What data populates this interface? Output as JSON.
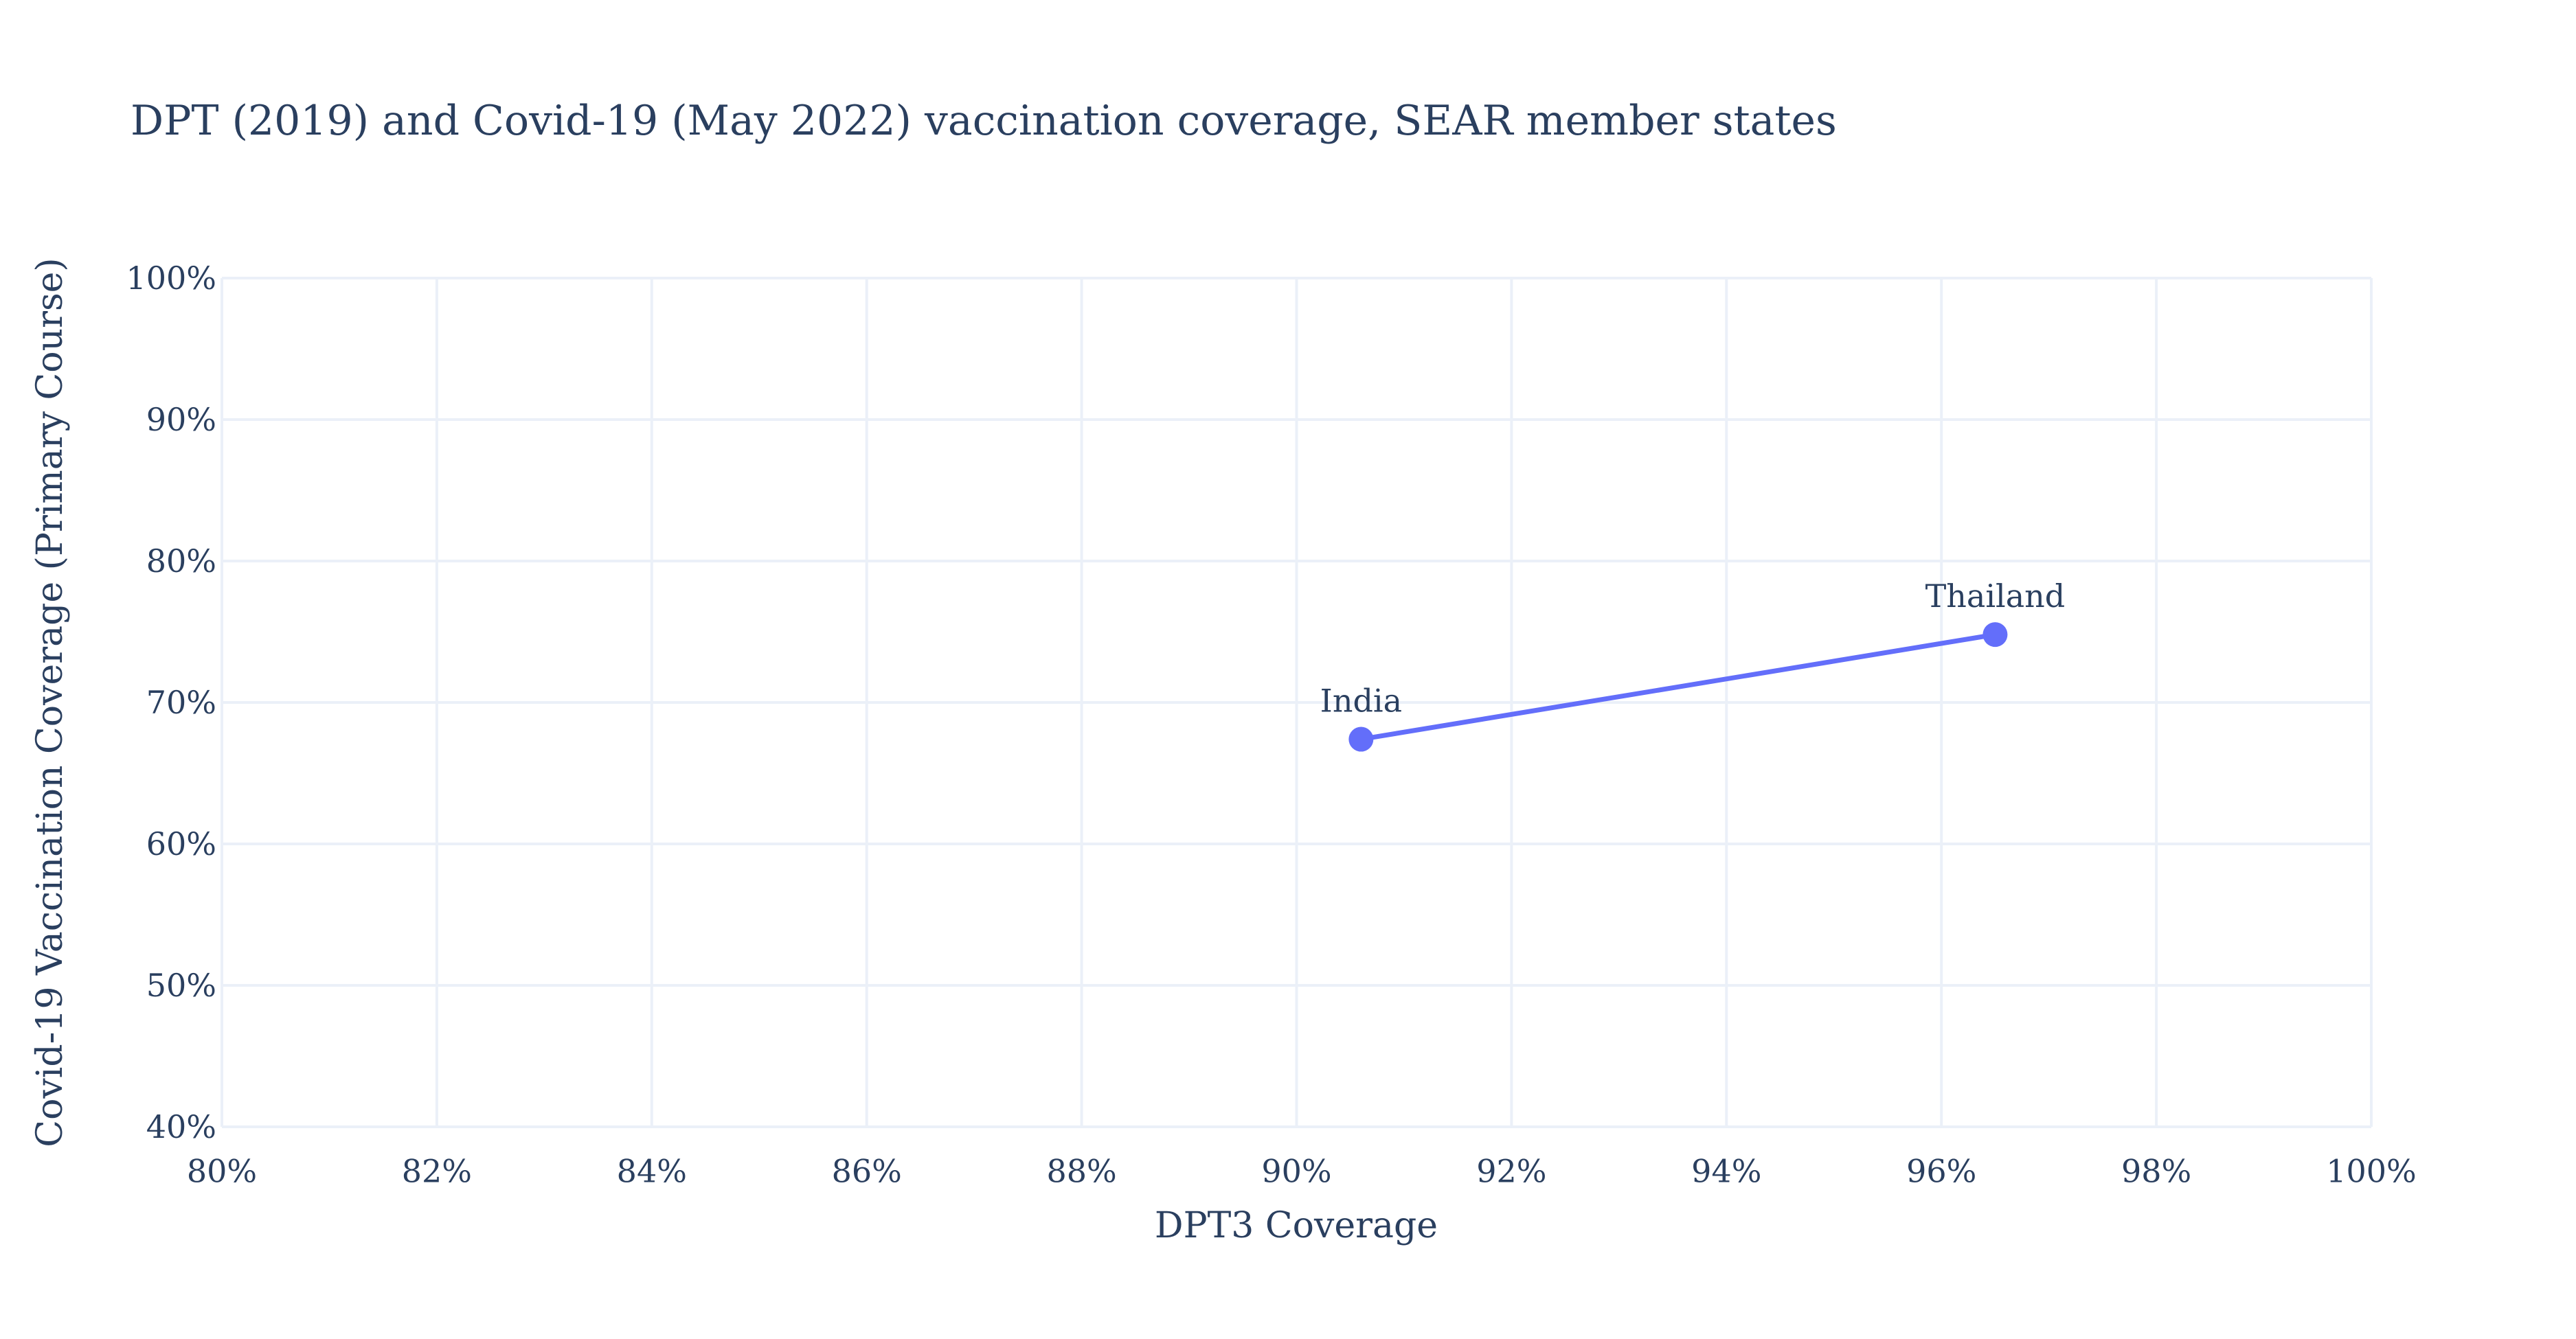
{
  "chart_data": {
    "type": "line",
    "title": "DPT (2019) and Covid-19 (May 2022) vaccination coverage, SEAR member states",
    "xlabel": "DPT3 Coverage",
    "ylabel": "Covid-19 Vaccination Coverage (Primary Course)",
    "xlim": [
      0.8,
      1.0
    ],
    "ylim": [
      0.4,
      1.0
    ],
    "x_ticks": [
      0.8,
      0.82,
      0.84,
      0.86,
      0.88,
      0.9,
      0.92,
      0.94,
      0.96,
      0.98,
      1.0
    ],
    "x_tick_labels": [
      "80%",
      "82%",
      "84%",
      "86%",
      "88%",
      "90%",
      "92%",
      "94%",
      "96%",
      "98%",
      "100%"
    ],
    "y_ticks": [
      0.4,
      0.5,
      0.6,
      0.7,
      0.8,
      0.9,
      1.0
    ],
    "y_tick_labels": [
      "40%",
      "50%",
      "60%",
      "70%",
      "80%",
      "90%",
      "100%"
    ],
    "grid": true,
    "series": [
      {
        "color": "#636efa",
        "mode": "lines+markers+text",
        "points": [
          {
            "label": "India",
            "x": 0.906,
            "y": 0.674
          },
          {
            "label": "Thailand",
            "x": 0.965,
            "y": 0.748
          }
        ]
      }
    ]
  }
}
